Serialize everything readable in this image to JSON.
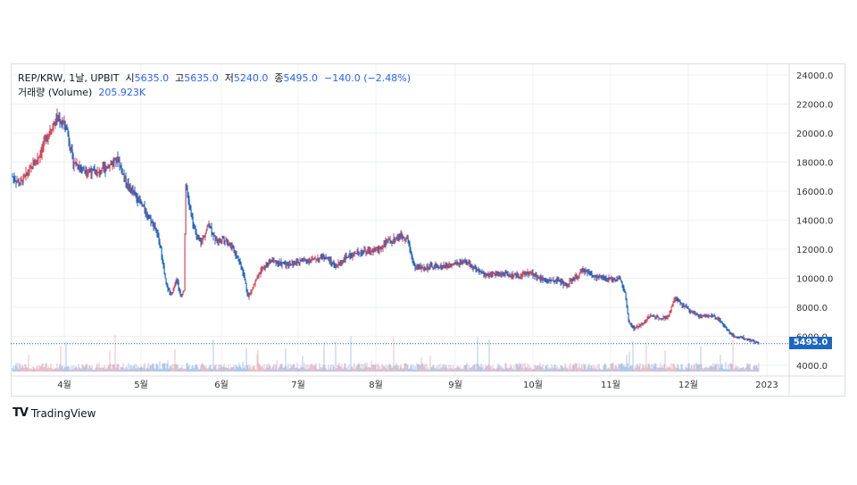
{
  "legend": {
    "symbol": "REP/KRW, 1날, UPBIT",
    "open_label": "시",
    "open": "5635.0",
    "high_label": "고",
    "high": "5635.0",
    "low_label": "저",
    "low": "5240.0",
    "close_label": "종",
    "close": "5495.0",
    "change": "−140.0 (−2.48%)",
    "volume_label": "거래량 (Volume)",
    "volume_value": "205.923K"
  },
  "last_price_tag": "5495.0",
  "brand": {
    "logo_text": "TV",
    "name": "TradingView"
  },
  "colors": {
    "up": "#d1495b",
    "down": "#1e66c4",
    "grid": "#eef0f3",
    "axis_text": "#333333"
  },
  "chart_data": {
    "type": "candlestick",
    "series_name": "REP/KRW",
    "x_tick_labels": [
      "4월",
      "5월",
      "6월",
      "7월",
      "8월",
      "9월",
      "10월",
      "11월",
      "12월",
      "2023"
    ],
    "y_tick_labels": [
      "4000.0",
      "6000.0",
      "8000.0",
      "10000.0",
      "12000.0",
      "14000.0",
      "16000.0",
      "18000.0",
      "20000.0",
      "22000.0",
      "24000.0"
    ],
    "ylim": [
      3000,
      24500
    ],
    "last_price": 5495,
    "price_path": [
      [
        0,
        17000
      ],
      [
        8,
        16500
      ],
      [
        20,
        17500
      ],
      [
        30,
        18500
      ],
      [
        40,
        20000
      ],
      [
        50,
        21000
      ],
      [
        60,
        20500
      ],
      [
        68,
        18000
      ],
      [
        80,
        17500
      ],
      [
        95,
        17200
      ],
      [
        108,
        17800
      ],
      [
        118,
        18200
      ],
      [
        128,
        16500
      ],
      [
        140,
        15500
      ],
      [
        150,
        14500
      ],
      [
        160,
        13500
      ],
      [
        166,
        12000
      ],
      [
        172,
        9500
      ],
      [
        178,
        8800
      ],
      [
        184,
        10000
      ],
      [
        188,
        8800
      ],
      [
        192,
        9200
      ],
      [
        194,
        16500
      ],
      [
        198,
        15000
      ],
      [
        205,
        13000
      ],
      [
        212,
        12500
      ],
      [
        220,
        13800
      ],
      [
        228,
        12500
      ],
      [
        236,
        12800
      ],
      [
        244,
        12300
      ],
      [
        252,
        11500
      ],
      [
        258,
        10500
      ],
      [
        264,
        8700
      ],
      [
        270,
        9500
      ],
      [
        278,
        10500
      ],
      [
        290,
        11200
      ],
      [
        300,
        11000
      ],
      [
        312,
        11000
      ],
      [
        325,
        11200
      ],
      [
        338,
        11300
      ],
      [
        350,
        11500
      ],
      [
        362,
        10800
      ],
      [
        375,
        11500
      ],
      [
        388,
        11800
      ],
      [
        400,
        11900
      ],
      [
        410,
        12000
      ],
      [
        420,
        12500
      ],
      [
        428,
        12700
      ],
      [
        435,
        12900
      ],
      [
        442,
        12800
      ],
      [
        450,
        10800
      ],
      [
        460,
        10700
      ],
      [
        470,
        10800
      ],
      [
        480,
        10800
      ],
      [
        490,
        10900
      ],
      [
        500,
        11000
      ],
      [
        510,
        11100
      ],
      [
        520,
        10500
      ],
      [
        530,
        10200
      ],
      [
        540,
        10300
      ],
      [
        550,
        10300
      ],
      [
        560,
        10200
      ],
      [
        570,
        10200
      ],
      [
        580,
        10400
      ],
      [
        590,
        10000
      ],
      [
        600,
        9800
      ],
      [
        610,
        9900
      ],
      [
        620,
        9500
      ],
      [
        630,
        10000
      ],
      [
        640,
        10600
      ],
      [
        650,
        10200
      ],
      [
        660,
        10000
      ],
      [
        670,
        9900
      ],
      [
        680,
        10000
      ],
      [
        686,
        9000
      ],
      [
        690,
        7000
      ],
      [
        696,
        6500
      ],
      [
        704,
        6800
      ],
      [
        714,
        7400
      ],
      [
        724,
        7300
      ],
      [
        734,
        7300
      ],
      [
        742,
        8600
      ],
      [
        750,
        8200
      ],
      [
        760,
        7700
      ],
      [
        770,
        7400
      ],
      [
        780,
        7400
      ],
      [
        790,
        7300
      ],
      [
        800,
        6500
      ],
      [
        808,
        6000
      ],
      [
        818,
        5900
      ],
      [
        828,
        5700
      ],
      [
        836,
        5495
      ]
    ]
  }
}
